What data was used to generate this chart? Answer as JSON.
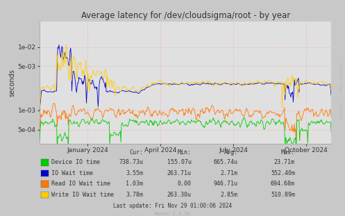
{
  "title": "Average latency for /dev/cloudsigma/root - by year",
  "ylabel": "seconds",
  "fig_bg_color": "#c8c8c8",
  "plot_bg_color": "#e0e0e0",
  "grid_color": "#ff9999",
  "legend_entries": [
    "Device IO time",
    "IO Wait time",
    "Read IO Wait time",
    "Write IO Wait time"
  ],
  "legend_colors": [
    "#00cc00",
    "#0000cc",
    "#ff7700",
    "#ffcc00"
  ],
  "cur_values": [
    "738.73u",
    "3.55m",
    "1.03m",
    "3.78m"
  ],
  "min_values": [
    "155.07u",
    "263.71u",
    "0.00",
    "263.30u"
  ],
  "avg_values": [
    "665.74u",
    "2.71m",
    "946.71u",
    "2.85m"
  ],
  "max_values": [
    "23.71m",
    "552.40m",
    "694.68m",
    "510.89m"
  ],
  "xtick_labels": [
    "January 2024",
    "April 2024",
    "July 2024",
    "October 2024"
  ],
  "xtick_pos": [
    0.164,
    0.414,
    0.664,
    0.914
  ],
  "yticks": [
    0.0005,
    0.001,
    0.005,
    0.01
  ],
  "ytick_labels": [
    "5e-04",
    "1e-03",
    "5e-03",
    "1e-02"
  ],
  "ylim": [
    0.0003,
    0.025
  ],
  "watermark": "RRDTOOL / TOBI OETIKER",
  "footer": "Munin 2.0.56",
  "last_update": "Last update: Fri Nov 29 01:00:06 2024",
  "n_points": 500,
  "seed": 42
}
